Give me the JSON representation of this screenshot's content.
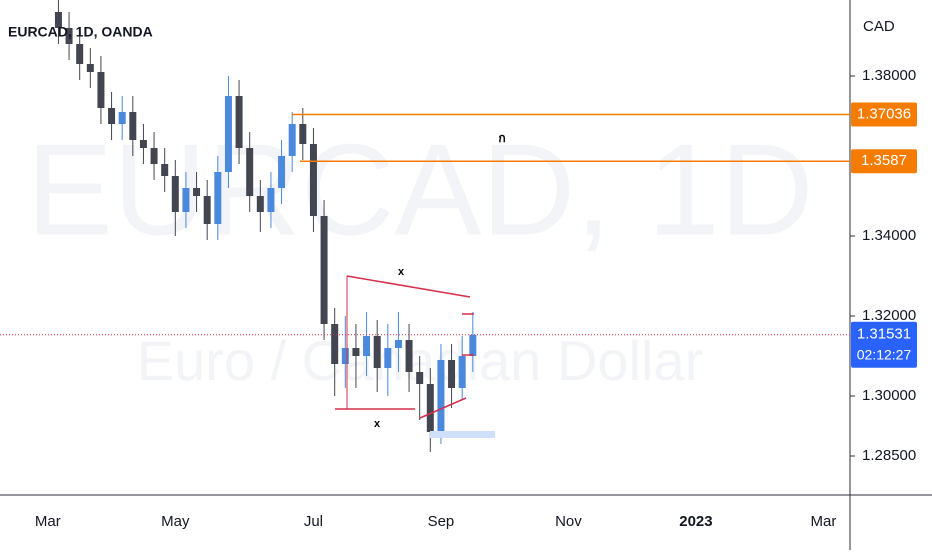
{
  "chart_data": {
    "type": "candlestick",
    "title": "EURCAD, 1D, OANDA",
    "watermark": "EURCAD, 1D",
    "watermark_subtitle": "Euro / Canadian Dollar",
    "y_unit_label": "CAD",
    "categories": [
      null,
      null,
      null,
      null,
      "Mar",
      null,
      null,
      null,
      null,
      null,
      null,
      null,
      null,
      null,
      null,
      null,
      "May",
      null,
      null,
      null,
      null,
      null,
      null,
      null,
      null,
      null,
      null,
      null,
      null,
      "Jul",
      null,
      null,
      null,
      null,
      null,
      null,
      null,
      null,
      null,
      null,
      null,
      "Sep",
      null,
      null,
      null,
      null,
      null,
      null,
      null,
      null,
      null,
      null,
      null,
      "Nov",
      null,
      null,
      null,
      null,
      null,
      null,
      null,
      null,
      null,
      null,
      null,
      "2023",
      null,
      null,
      null,
      null,
      null,
      null,
      null,
      null,
      null,
      null,
      null,
      "Mar",
      null,
      null
    ],
    "open": [
      null,
      null,
      null,
      null,
      null,
      1.396,
      1.392,
      1.388,
      1.383,
      1.381,
      1.372,
      1.368,
      1.371,
      1.364,
      1.362,
      1.358,
      1.355,
      1.346,
      1.352,
      1.35,
      1.343,
      1.356,
      1.375,
      1.362,
      1.35,
      1.346,
      1.352,
      1.36,
      1.368,
      1.363,
      1.345,
      1.318,
      1.308,
      1.312,
      1.31,
      1.315,
      1.307,
      1.312,
      1.314,
      1.306,
      1.303,
      1.291,
      1.309,
      1.302,
      1.31,
      null,
      null,
      null,
      null,
      null,
      null,
      null,
      null,
      null,
      null,
      null,
      null,
      null,
      null,
      null,
      null,
      null,
      null,
      null,
      null,
      null,
      null,
      null,
      null,
      null,
      null,
      null,
      null,
      null,
      null,
      null,
      null,
      null,
      null,
      null
    ],
    "high": [
      null,
      null,
      null,
      null,
      null,
      1.4,
      1.396,
      1.392,
      1.387,
      1.385,
      1.376,
      1.375,
      1.375,
      1.368,
      1.366,
      1.362,
      1.359,
      1.356,
      1.356,
      1.354,
      1.36,
      1.38,
      1.379,
      1.366,
      1.354,
      1.356,
      1.364,
      1.371,
      1.372,
      1.367,
      1.349,
      1.322,
      1.32,
      1.318,
      1.321,
      1.319,
      1.318,
      1.321,
      1.318,
      1.31,
      1.307,
      1.313,
      1.313,
      1.315,
      1.321,
      null,
      null,
      null,
      null,
      null,
      null,
      null,
      null,
      null,
      null,
      null,
      null,
      null,
      null,
      null,
      null,
      null,
      null,
      null,
      null,
      null,
      null,
      null,
      null,
      null,
      null,
      null,
      null,
      null,
      null,
      null,
      null,
      null,
      null,
      null
    ],
    "low": [
      null,
      null,
      null,
      null,
      null,
      1.388,
      1.384,
      1.379,
      1.377,
      1.368,
      1.364,
      1.364,
      1.36,
      1.358,
      1.354,
      1.351,
      1.34,
      1.342,
      1.346,
      1.339,
      1.339,
      1.352,
      1.358,
      1.346,
      1.341,
      1.342,
      1.348,
      1.356,
      1.359,
      1.341,
      1.314,
      1.3,
      1.302,
      1.302,
      1.305,
      1.301,
      1.3,
      1.306,
      1.301,
      1.294,
      1.286,
      1.288,
      1.297,
      1.299,
      1.306,
      null,
      null,
      null,
      null,
      null,
      null,
      null,
      null,
      null,
      null,
      null,
      null,
      null,
      null,
      null,
      null,
      null,
      null,
      null,
      null,
      null,
      null,
      null,
      null,
      null,
      null,
      null,
      null,
      null,
      null,
      null,
      null,
      null,
      null,
      null
    ],
    "close": [
      null,
      null,
      null,
      null,
      null,
      1.392,
      1.388,
      1.383,
      1.381,
      1.372,
      1.368,
      1.371,
      1.364,
      1.362,
      1.358,
      1.355,
      1.346,
      1.352,
      1.35,
      1.343,
      1.356,
      1.375,
      1.362,
      1.35,
      1.346,
      1.352,
      1.36,
      1.368,
      1.363,
      1.345,
      1.318,
      1.308,
      1.312,
      1.31,
      1.315,
      1.307,
      1.312,
      1.314,
      1.306,
      1.303,
      1.291,
      1.309,
      1.302,
      1.31,
      1.3153,
      null,
      null,
      null,
      null,
      null,
      null,
      null,
      null,
      null,
      null,
      null,
      null,
      null,
      null,
      null,
      null,
      null,
      null,
      null,
      null,
      null,
      null,
      null,
      null,
      null,
      null,
      null,
      null,
      null,
      null,
      null,
      null,
      null,
      null,
      null
    ],
    "up_color": "#4a89dc",
    "down_color": "#434651",
    "ylim": [
      1.27525,
      1.399
    ],
    "yticks": [
      {
        "value": 1.285,
        "label": "1.28500"
      },
      {
        "value": 1.3,
        "label": "1.30000"
      },
      {
        "value": 1.32,
        "label": "1.32000"
      },
      {
        "value": 1.34,
        "label": "1.34000"
      },
      {
        "value": 1.38,
        "label": "1.38000"
      }
    ],
    "levels": [
      {
        "value": 1.37036,
        "color": "#f57c00"
      },
      {
        "value": 1.3587,
        "color": "#f57c00"
      }
    ],
    "last_price": {
      "value": 1.31531,
      "countdown": "02:12:27",
      "color": "#2962ff"
    },
    "annotations": [
      "x",
      "x",
      "ก"
    ]
  }
}
